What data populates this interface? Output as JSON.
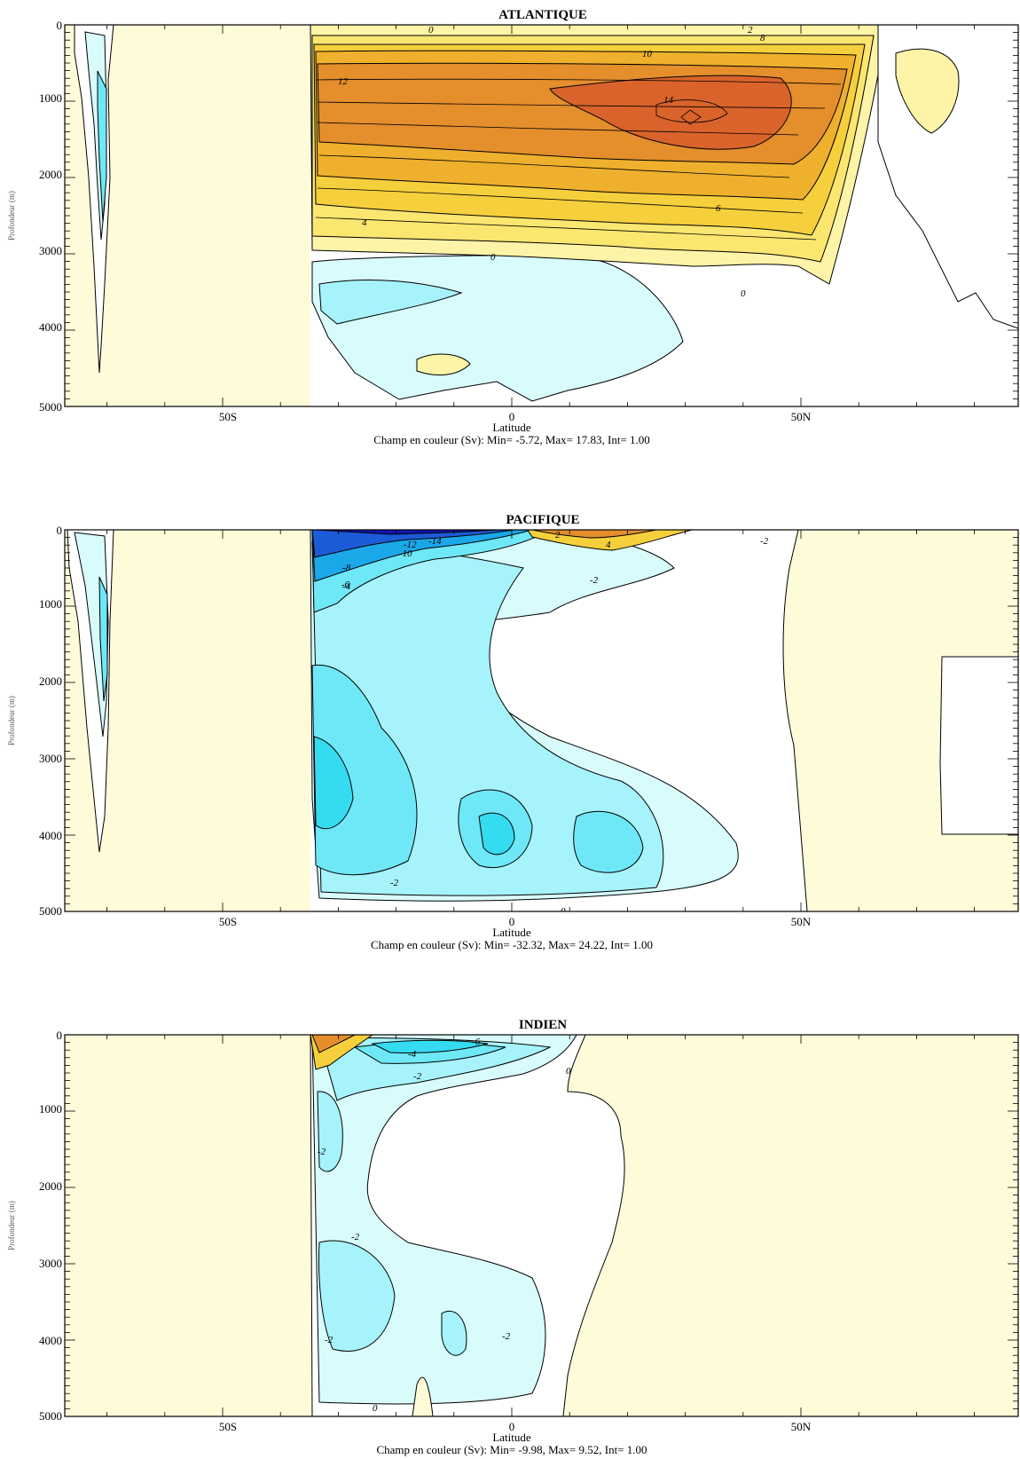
{
  "chart_data": [
    {
      "type": "heatmap",
      "title": "ATLANTIQUE",
      "xlabel": "Latitude",
      "ylabel": "Profondeur (m)",
      "caption": "Champ en couleur (Sv): Min= -5.72, Max= 17.83, Int= 1.00",
      "min": -5.72,
      "max": 17.83,
      "interval": 1.0,
      "x_ticks": [
        "50S",
        "0",
        "50N"
      ],
      "y_ticks": [
        "0",
        "1000",
        "2000",
        "3000",
        "4000",
        "5000"
      ],
      "contour_labels": [
        "0",
        "2",
        "4",
        "6",
        "8",
        "10",
        "12",
        "14"
      ]
    },
    {
      "type": "heatmap",
      "title": "PACIFIQUE",
      "xlabel": "Latitude",
      "ylabel": "Profondeur (m)",
      "caption": "Champ en couleur (Sv): Min= -32.32, Max= 24.22, Int= 1.00",
      "min": -32.32,
      "max": 24.22,
      "interval": 1.0,
      "x_ticks": [
        "50S",
        "0",
        "50N"
      ],
      "y_ticks": [
        "0",
        "1000",
        "2000",
        "3000",
        "4000",
        "5000"
      ],
      "contour_labels": [
        "-2",
        "-4",
        "-6",
        "-8",
        "-10",
        "-12",
        "-14",
        "0",
        "2",
        "4"
      ]
    },
    {
      "type": "heatmap",
      "title": "INDIEN",
      "xlabel": "Latitude",
      "ylabel": "Profondeur (m)",
      "caption": "Champ en couleur (Sv): Min= -9.98, Max= 9.52, Int= 1.00",
      "min": -9.98,
      "max": 9.52,
      "interval": 1.0,
      "x_ticks": [
        "50S",
        "0",
        "50N"
      ],
      "y_ticks": [
        "0",
        "1000",
        "2000",
        "3000",
        "4000",
        "5000"
      ],
      "contour_labels": [
        "-2",
        "-4",
        "-6",
        "0",
        "2"
      ]
    }
  ],
  "colors": {
    "land": "#fefbd9",
    "zero": "#ffffff",
    "positive": [
      "#fdf4a8",
      "#fbe670",
      "#f6cf3c",
      "#efb02d",
      "#e48e2c",
      "#d9632a"
    ],
    "negative": [
      "#d8fbfc",
      "#a6f3fb",
      "#6ee8f6",
      "#35dbf0",
      "#1aa8e8",
      "#1c5bd8",
      "#1414b0"
    ]
  }
}
